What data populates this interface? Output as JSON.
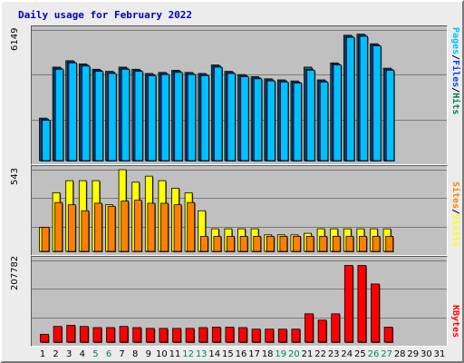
{
  "title": "Daily usage for February 2022",
  "colors": {
    "hits": "#00805c",
    "files": "#0040ff",
    "pages": "#00c0ff",
    "visits": "#ffff00",
    "sites": "#ff8000",
    "kbytes": "#ff0000",
    "weekend_day": "#00805c",
    "weekday": "#000000"
  },
  "legend": {
    "pages": "Pages",
    "files": "Files",
    "hits": "Hits",
    "sites": "Sites",
    "visits": "Visits",
    "kbytes": "KBytes",
    "sep": "/"
  },
  "chart_data": [
    {
      "type": "bar",
      "name": "hits-files-pages",
      "ymax_label": "6149",
      "ylim": [
        0,
        6149
      ],
      "days": [
        1,
        2,
        3,
        4,
        5,
        6,
        7,
        8,
        9,
        10,
        11,
        12,
        13,
        14,
        15,
        16,
        17,
        18,
        19,
        20,
        21,
        22,
        23,
        24,
        25,
        26,
        27,
        28,
        29,
        30,
        31
      ],
      "series": [
        {
          "name": "Hits",
          "values": [
            2000,
            4400,
            4700,
            4550,
            4300,
            4200,
            4400,
            4300,
            4100,
            4150,
            4250,
            4150,
            4100,
            4500,
            4200,
            4050,
            3950,
            3850,
            3800,
            3750,
            4400,
            3800,
            4600,
            5900,
            5950,
            5500,
            4350,
            0,
            0,
            0,
            0
          ]
        },
        {
          "name": "Files",
          "values": [
            1950,
            4350,
            4650,
            4500,
            4250,
            4150,
            4350,
            4250,
            4050,
            4100,
            4200,
            4100,
            4050,
            4450,
            4150,
            4000,
            3900,
            3800,
            3750,
            3700,
            4300,
            3750,
            4550,
            5850,
            5900,
            5450,
            4300,
            0,
            0,
            0,
            0
          ]
        },
        {
          "name": "Pages",
          "values": [
            1900,
            4300,
            4600,
            4450,
            4200,
            4100,
            4300,
            4200,
            4000,
            4050,
            4150,
            4050,
            4000,
            4400,
            4100,
            3950,
            3850,
            3750,
            3700,
            3650,
            4250,
            3700,
            4500,
            5800,
            5850,
            5400,
            4250,
            0,
            0,
            0,
            0
          ]
        }
      ]
    },
    {
      "type": "bar",
      "name": "visits-sites",
      "ymax_label": "543",
      "ylim": [
        0,
        543
      ],
      "days": [
        1,
        2,
        3,
        4,
        5,
        6,
        7,
        8,
        9,
        10,
        11,
        12,
        13,
        14,
        15,
        16,
        17,
        18,
        19,
        20,
        21,
        22,
        23,
        24,
        25,
        26,
        27,
        28,
        29,
        30,
        31
      ],
      "series": [
        {
          "name": "Visits",
          "values": [
            160,
            390,
            470,
            470,
            470,
            310,
            543,
            460,
            500,
            470,
            420,
            390,
            270,
            150,
            150,
            150,
            150,
            110,
            110,
            110,
            120,
            150,
            150,
            150,
            150,
            150,
            150,
            0,
            0,
            0,
            0
          ]
        },
        {
          "name": "Sites",
          "values": [
            160,
            325,
            310,
            270,
            320,
            300,
            335,
            340,
            320,
            320,
            310,
            325,
            100,
            100,
            100,
            100,
            100,
            100,
            100,
            100,
            100,
            100,
            100,
            100,
            100,
            100,
            100,
            0,
            0,
            0,
            0
          ]
        }
      ]
    },
    {
      "type": "bar",
      "name": "kbytes",
      "ymax_label": "207782",
      "ylim": [
        0,
        207782
      ],
      "days": [
        1,
        2,
        3,
        4,
        5,
        6,
        7,
        8,
        9,
        10,
        11,
        12,
        13,
        14,
        15,
        16,
        17,
        18,
        19,
        20,
        21,
        22,
        23,
        24,
        25,
        26,
        27,
        28,
        29,
        30,
        31
      ],
      "series": [
        {
          "name": "KBytes",
          "values": [
            20000,
            40000,
            43000,
            40000,
            37000,
            37000,
            40000,
            37000,
            35000,
            35000,
            35000,
            35000,
            37000,
            38000,
            38000,
            37000,
            33000,
            33000,
            33000,
            33000,
            72000,
            56000,
            72000,
            195000,
            195000,
            148000,
            38000,
            0,
            0,
            0,
            0
          ]
        }
      ]
    }
  ],
  "x_labels": [
    "1",
    "2",
    "3",
    "4",
    "5",
    "6",
    "7",
    "8",
    "9",
    "10",
    "11",
    "12",
    "13",
    "14",
    "15",
    "16",
    "17",
    "18",
    "19",
    "20",
    "21",
    "22",
    "23",
    "24",
    "25",
    "26",
    "27",
    "28",
    "29",
    "30",
    "31"
  ],
  "weekend_days": [
    5,
    6,
    12,
    13,
    19,
    20,
    26,
    27
  ]
}
